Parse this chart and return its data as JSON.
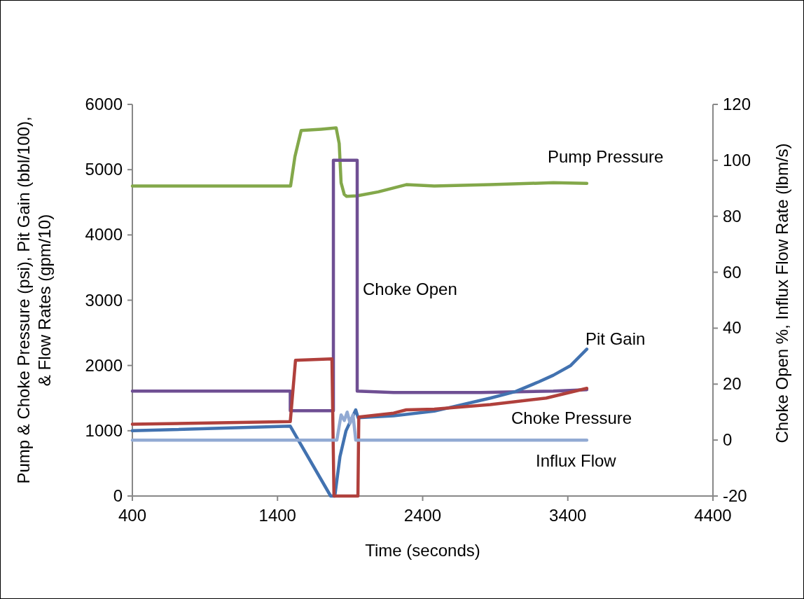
{
  "chart_data": {
    "type": "line",
    "xlabel": "Time (seconds)",
    "ylabel": "Pump & Choke Pressure (psi), Pit Gain (bbl/100),\n& Flow Rates (gpm/10)",
    "y2label": "Choke Open %, Influx Flow Rate (lbm/s)",
    "xlim": [
      400,
      4400
    ],
    "xticks": [
      400,
      1400,
      2400,
      3400,
      4400
    ],
    "ylim": [
      0,
      6000
    ],
    "yticks": [
      0,
      1000,
      2000,
      3000,
      4000,
      5000,
      6000
    ],
    "y2lim": [
      -20,
      120
    ],
    "y2ticks": [
      -20,
      0,
      20,
      40,
      60,
      80,
      100,
      120
    ],
    "grid": false,
    "marker": "none",
    "line_style": "solid",
    "series": [
      {
        "name": "Pump Pressure",
        "color": "#83a84a",
        "x": [
          400,
          900,
          1490,
          1520,
          1563,
          1700,
          1804,
          1825,
          1838,
          1860,
          1877,
          1949,
          2094,
          2287,
          2480,
          2866,
          3300,
          3531
        ],
        "values": [
          4750,
          4750,
          4750,
          5200,
          5600,
          5620,
          5640,
          5400,
          4800,
          4620,
          4590,
          4600,
          4660,
          4770,
          4750,
          4770,
          4800,
          4790
        ]
      },
      {
        "name": "Choke Open",
        "color": "#6f4f93",
        "axis": "y2",
        "x": [
          400,
          1488,
          1488,
          1785,
          1785,
          1949,
          1949,
          2200,
          2800,
          3300,
          3531
        ],
        "values": [
          17.5,
          17.5,
          10.5,
          10.5,
          100,
          100,
          17.5,
          17,
          17,
          17.5,
          18
        ]
      },
      {
        "name": "Pit Gain",
        "color": "#4272b0",
        "x": [
          400,
          1488,
          1766,
          1795,
          1830,
          1872,
          1939,
          1955,
          2200,
          2480,
          2866,
          3040,
          3200,
          3300,
          3420,
          3531
        ],
        "values": [
          1000,
          1070,
          0,
          0,
          600,
          1000,
          1320,
          1200,
          1230,
          1300,
          1500,
          1600,
          1750,
          1850,
          2000,
          2250
        ]
      },
      {
        "name": "Choke Pressure",
        "color": "#b0403c",
        "x": [
          400,
          1488,
          1524,
          1775,
          1789,
          1954,
          1960,
          2200,
          2287,
          2480,
          2866,
          3250,
          3531
        ],
        "values": [
          1100,
          1140,
          2080,
          2100,
          0,
          0,
          1210,
          1270,
          1320,
          1330,
          1400,
          1500,
          1650
        ]
      },
      {
        "name": "Influx Flow",
        "color": "#92aad3",
        "axis": "y2",
        "x": [
          400,
          1809,
          1838,
          1860,
          1880,
          1900,
          1920,
          1939,
          3531
        ],
        "values": [
          0,
          0,
          9,
          7,
          10,
          6,
          9,
          0,
          0
        ]
      }
    ]
  }
}
